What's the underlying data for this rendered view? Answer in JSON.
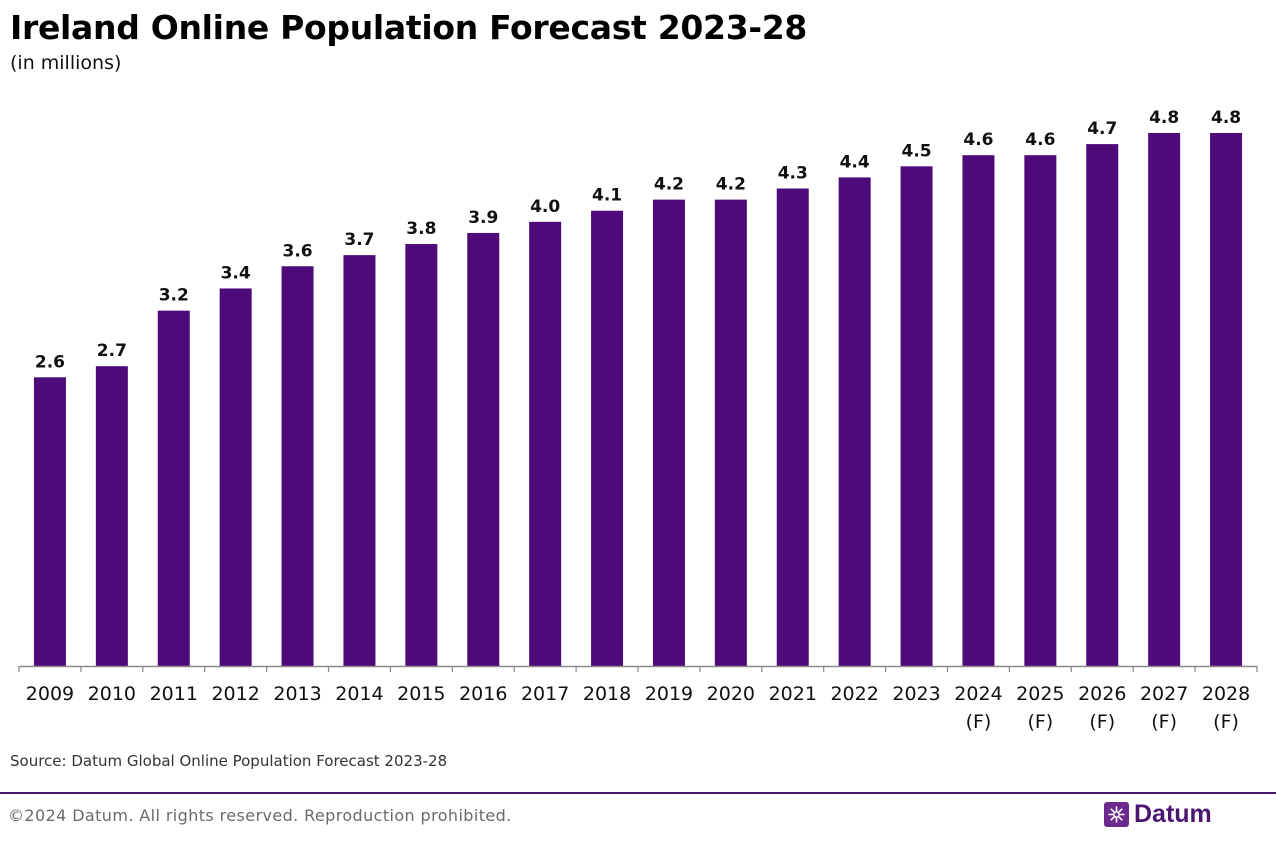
{
  "title": "Ireland Online Population Forecast 2023-28",
  "subtitle": "(in millions)",
  "source": "Source: Datum Global Online Population Forecast 2023-28",
  "copyright": "©2024 Datum. All rights reserved. Reproduction prohibited.",
  "brand": "Datum",
  "colors": {
    "bar": "#4f0a7a",
    "axis": "#8a8a8a",
    "brand": "#4b1570"
  },
  "chart_data": {
    "type": "bar",
    "categories": [
      "2009",
      "2010",
      "2011",
      "2012",
      "2013",
      "2014",
      "2015",
      "2016",
      "2017",
      "2018",
      "2019",
      "2020",
      "2021",
      "2022",
      "2023",
      "2024\n(F)",
      "2025\n(F)",
      "2026\n(F)",
      "2027\n(F)",
      "2028\n(F)"
    ],
    "values": [
      2.6,
      2.7,
      3.2,
      3.4,
      3.6,
      3.7,
      3.8,
      3.9,
      4.0,
      4.1,
      4.2,
      4.2,
      4.3,
      4.4,
      4.5,
      4.6,
      4.6,
      4.7,
      4.8,
      4.8
    ],
    "labels": [
      "2.6",
      "2.7",
      "3.2",
      "3.4",
      "3.6",
      "3.7",
      "3.8",
      "3.9",
      "4.0",
      "4.1",
      "4.2",
      "4.2",
      "4.3",
      "4.4",
      "4.5",
      "4.6",
      "4.6",
      "4.7",
      "4.8",
      "4.8"
    ],
    "title": "Ireland Online Population Forecast 2023-28",
    "ylabel": "",
    "xlabel": "",
    "ylim": [
      0,
      4.8
    ],
    "grid": false
  }
}
